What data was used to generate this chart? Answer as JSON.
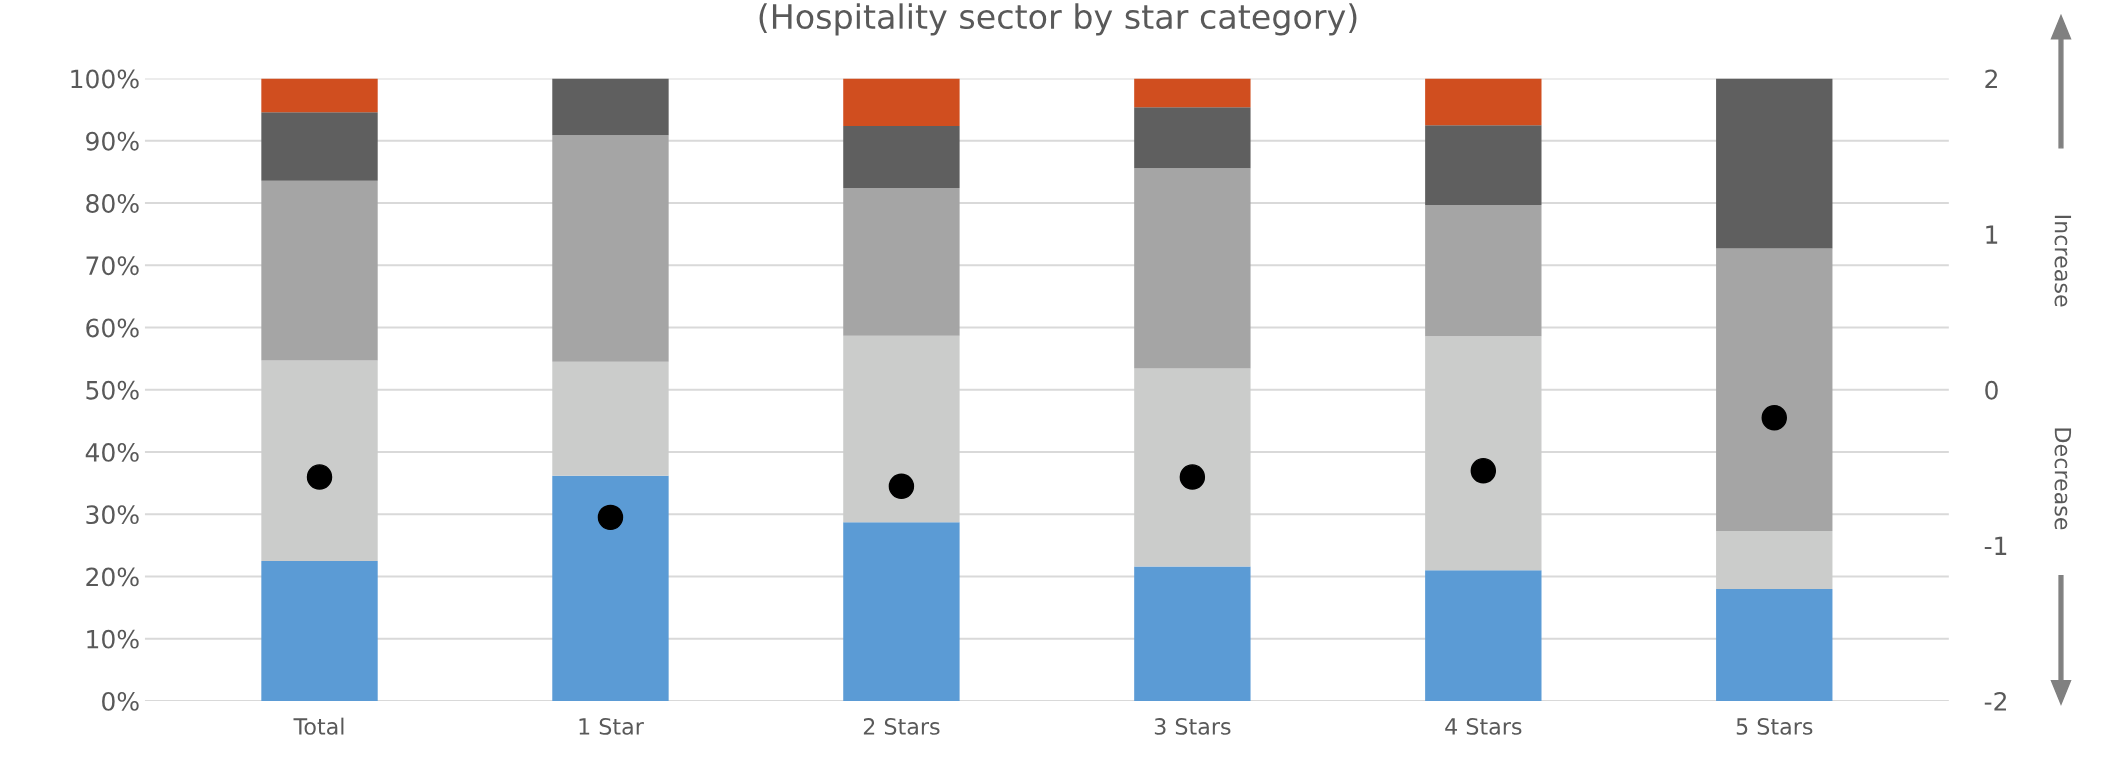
{
  "chart_data": {
    "type": "bar",
    "title": "(Hospitality sector by star category)",
    "stacked": true,
    "grid": "y",
    "categories": [
      "Total",
      "1 Star",
      "2 Stars",
      "3 Stars",
      "4 Stars",
      "5 Stars"
    ],
    "series": [
      {
        "color": "#5b9bd5",
        "values": [
          22.5,
          36.2,
          28.7,
          21.6,
          21.0,
          18.0
        ]
      },
      {
        "color": "#cbcccb",
        "values": [
          32.2,
          18.3,
          30.0,
          31.8,
          37.6,
          9.3
        ]
      },
      {
        "color": "#a5a5a5",
        "values": [
          28.9,
          36.4,
          23.7,
          32.2,
          21.1,
          45.4
        ]
      },
      {
        "color": "#5f5f5f",
        "values": [
          11.0,
          9.1,
          10.0,
          9.8,
          12.8,
          27.3
        ]
      },
      {
        "color": "#d04e1f",
        "values": [
          5.4,
          0,
          7.6,
          4.6,
          7.5,
          0
        ]
      },
      {
        "type": "scatter",
        "axis": "y2",
        "color": "#000000",
        "marker": "circle",
        "values": [
          -0.56,
          -0.82,
          -0.62,
          -0.56,
          -0.52,
          -0.18
        ]
      }
    ],
    "ylim": [
      0,
      100
    ],
    "yticks": [
      {
        "value": 0,
        "label": "0%"
      },
      {
        "value": 10,
        "label": "10%"
      },
      {
        "value": 20,
        "label": "20%"
      },
      {
        "value": 30,
        "label": "30%"
      },
      {
        "value": 40,
        "label": "40%"
      },
      {
        "value": 50,
        "label": "50%"
      },
      {
        "value": 60,
        "label": "60%"
      },
      {
        "value": 70,
        "label": "70%"
      },
      {
        "value": 80,
        "label": "80%"
      },
      {
        "value": 90,
        "label": "90%"
      },
      {
        "value": 100,
        "label": "100%"
      }
    ],
    "y2lim": [
      -2,
      2
    ],
    "y2ticks": [
      -2,
      -1,
      0,
      1,
      2
    ],
    "annotations": [
      "Increase",
      "Decrease"
    ]
  }
}
